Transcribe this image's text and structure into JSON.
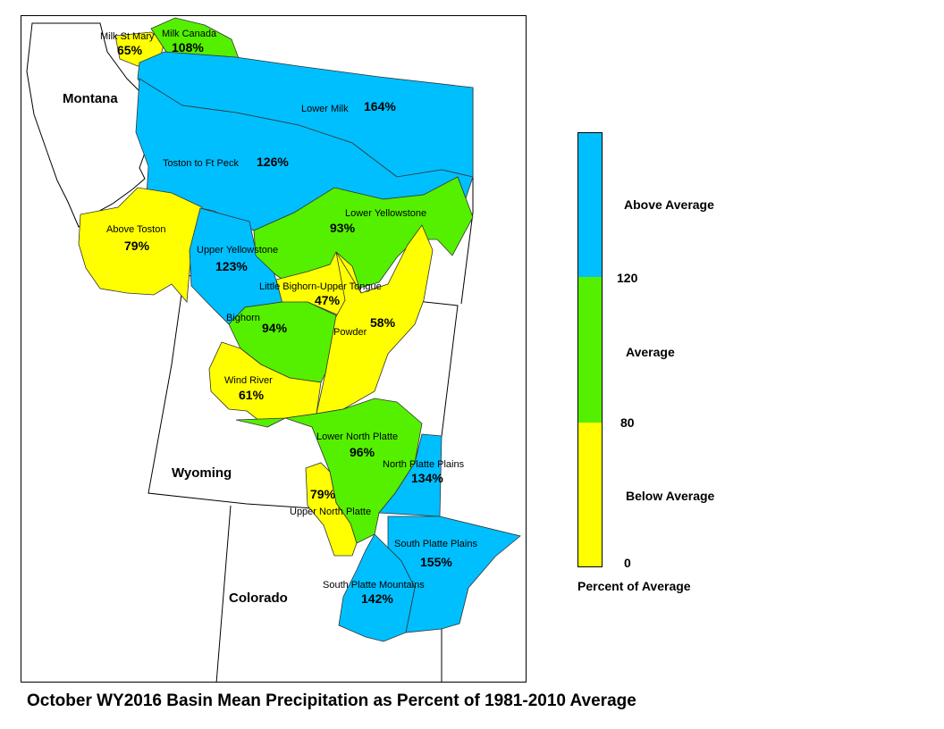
{
  "title": "October WY2016 Basin Mean Precipitation as Percent of 1981-2010 Average",
  "states": {
    "montana": "Montana",
    "wyoming": "Wyoming",
    "colorado": "Colorado"
  },
  "colors": {
    "above": "#00bfff",
    "average": "#55f000",
    "below": "#ffff00"
  },
  "basins": {
    "milk_st_mary": {
      "name": "Milk St Mary",
      "pct": "65%",
      "category": "below"
    },
    "milk_canada": {
      "name": "Milk Canada",
      "pct": "108%",
      "category": "average"
    },
    "lower_milk": {
      "name": "Lower Milk",
      "pct": "164%",
      "category": "above"
    },
    "toston_ft_peck": {
      "name": "Toston to Ft Peck",
      "pct": "126%",
      "category": "above"
    },
    "above_toston": {
      "name": "Above Toston",
      "pct": "79%",
      "category": "below"
    },
    "upper_yellowstone": {
      "name": "Upper Yellowstone",
      "pct": "123%",
      "category": "above"
    },
    "lower_yellowstone": {
      "name": "Lower Yellowstone",
      "pct": "93%",
      "category": "average"
    },
    "little_bighorn": {
      "name": "Little Bighorn-Upper Tongue",
      "pct": "47%",
      "category": "below"
    },
    "bighorn": {
      "name": "Bighorn",
      "pct": "94%",
      "category": "average"
    },
    "powder": {
      "name": "Powder",
      "pct": "58%",
      "category": "below"
    },
    "wind_river": {
      "name": "Wind River",
      "pct": "61%",
      "category": "below"
    },
    "lower_north_platte": {
      "name": "Lower North Platte",
      "pct": "96%",
      "category": "average"
    },
    "north_platte_plains": {
      "name": "North Platte Plains",
      "pct": "134%",
      "category": "above"
    },
    "upper_north_platte": {
      "name": "Upper North Platte",
      "pct": "79%",
      "category": "below"
    },
    "south_platte_plains": {
      "name": "South Platte Plains",
      "pct": "155%",
      "category": "above"
    },
    "south_platte_mountains": {
      "name": "South Platte Mountains",
      "pct": "142%",
      "category": "above"
    }
  },
  "legend": {
    "above_label": "Above Average",
    "average_label": "Average",
    "below_label": "Below Average",
    "tick_120": "120",
    "tick_80": "80",
    "tick_0": "0",
    "caption": "Percent of Average"
  }
}
